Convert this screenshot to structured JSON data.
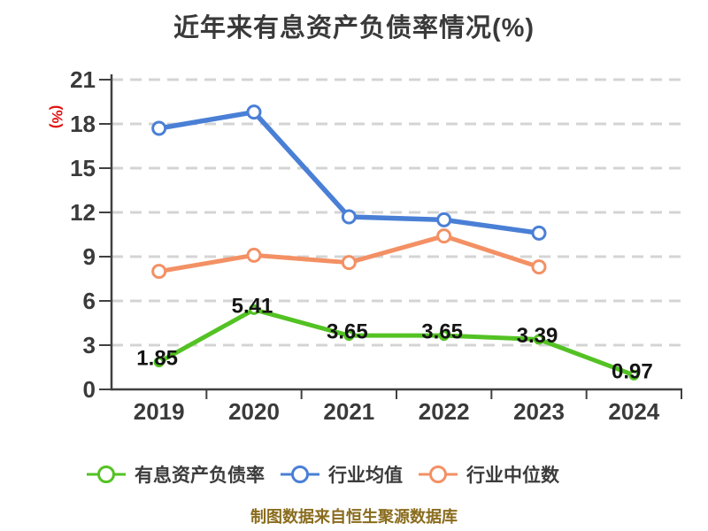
{
  "chart_data": {
    "type": "line",
    "title": "近年来有息资产负债率情况(%)",
    "ylabel": "(%)",
    "xlabel": "",
    "categories": [
      "2019",
      "2020",
      "2021",
      "2022",
      "2023",
      "2024"
    ],
    "series": [
      {
        "name": "有息资产负债率",
        "color": "#53c223",
        "values": [
          1.85,
          5.41,
          3.65,
          3.65,
          3.39,
          0.97
        ],
        "labels": [
          "1.85",
          "5.41",
          "3.65",
          "3.65",
          "3.39",
          "0.97"
        ],
        "marker_radius": 4.5,
        "line_width": 5
      },
      {
        "name": "行业均值",
        "color": "#4a7fd6",
        "values": [
          17.7,
          18.8,
          11.7,
          11.5,
          10.6,
          null
        ],
        "labels": null,
        "marker_radius": 7,
        "line_width": 5.5
      },
      {
        "name": "行业中位数",
        "color": "#f39064",
        "values": [
          8.0,
          9.1,
          8.6,
          10.4,
          8.3,
          null
        ],
        "labels": null,
        "marker_radius": 7,
        "line_width": 5
      }
    ],
    "ylim": [
      0,
      21
    ],
    "ytick_step": 3,
    "yticks": [
      "0",
      "3",
      "6",
      "9",
      "12",
      "15",
      "18",
      "21"
    ],
    "grid": "horizontal dashed",
    "legend_position": "bottom"
  },
  "footer": {
    "text": "制图数据来自恒生聚源数据库"
  },
  "colors": {
    "title": "#3a3a3a",
    "axis": "#404040",
    "grid": "#d4d4d4",
    "tick_label": "#3a3a3a",
    "data_label": "#141414",
    "ylabel": "#e11313",
    "legend_text": "#3c3c3c",
    "footer_text": "#8a6c1e",
    "background": "#ffffff"
  }
}
